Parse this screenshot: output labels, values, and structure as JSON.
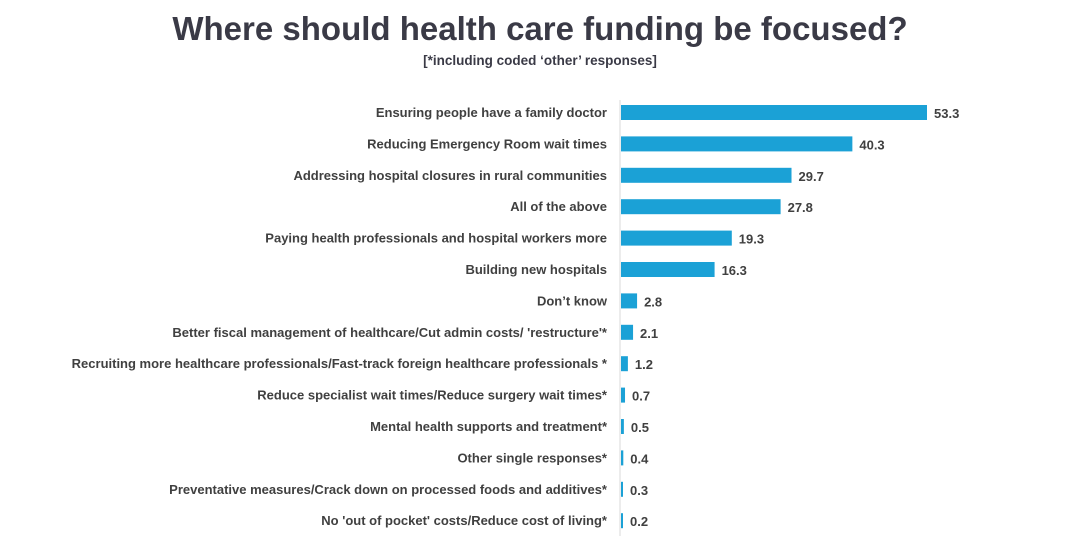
{
  "chart_data": {
    "type": "bar",
    "orientation": "horizontal",
    "title": "Where should health care funding be focused?",
    "subtitle": "[*including coded ‘other’ responses]",
    "categories": [
      "Ensuring people have a family doctor",
      "Reducing Emergency Room wait times",
      "Addressing hospital closures in rural communities",
      "All of the above",
      "Paying health professionals and hospital workers more",
      "Building new hospitals",
      "Don’t know",
      "Better fiscal management of healthcare/Cut admin costs/ 'restructure'*",
      "Recruiting more healthcare professionals/Fast-track foreign healthcare professionals *",
      "Reduce specialist wait times/Reduce surgery wait times*",
      "Mental health supports and treatment*",
      "Other single responses*",
      "Preventative measures/Crack down on processed foods and additives*",
      "No 'out of pocket' costs/Reduce cost of living*"
    ],
    "values": [
      53.3,
      40.3,
      29.7,
      27.8,
      19.3,
      16.3,
      2.8,
      2.1,
      1.2,
      0.7,
      0.5,
      0.4,
      0.3,
      0.2
    ],
    "value_labels": [
      "53.3",
      "40.3",
      "29.7",
      "27.8",
      "19.3",
      "16.3",
      "2.8",
      "2.1",
      "1.2",
      "0.7",
      "0.5",
      "0.4",
      "0.3",
      "0.2"
    ],
    "xlim": [
      0,
      60
    ],
    "xlabel": "",
    "ylabel": "",
    "grid": false,
    "legend": "none",
    "bar_color": "#1BA1D6",
    "text_color": "#404040",
    "title_color": "#3A3A46"
  }
}
